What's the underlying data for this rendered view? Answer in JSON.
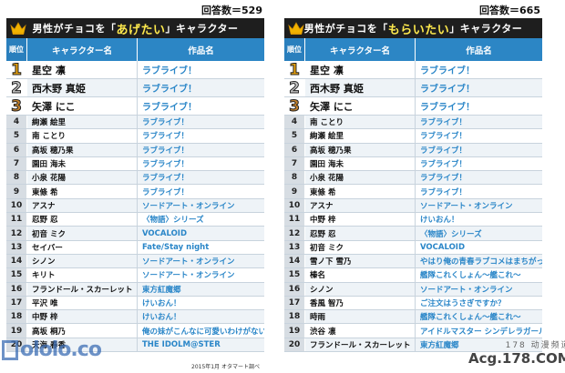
{
  "left": {
    "count": "回答数＝529",
    "title_pre": "男性が",
    "title_mid": "チョコを「",
    "title_hl": "あげたい",
    "title_post": "」キャラクター",
    "header": {
      "rank": "順位",
      "name": "キャラクター名",
      "work": "作品名"
    },
    "rows": [
      {
        "rank": "1",
        "name": "星空 凛",
        "work": "ラブライブ！"
      },
      {
        "rank": "2",
        "name": "西木野 真姫",
        "work": "ラブライブ！"
      },
      {
        "rank": "3",
        "name": "矢澤 にこ",
        "work": "ラブライブ！"
      },
      {
        "rank": "4",
        "name": "絢瀬 絵里",
        "work": "ラブライブ！"
      },
      {
        "rank": "5",
        "name": "南 ことり",
        "work": "ラブライブ！"
      },
      {
        "rank": "6",
        "name": "高坂 穂乃果",
        "work": "ラブライブ！"
      },
      {
        "rank": "7",
        "name": "園田 海未",
        "work": "ラブライブ！"
      },
      {
        "rank": "8",
        "name": "小泉 花陽",
        "work": "ラブライブ！"
      },
      {
        "rank": "9",
        "name": "東條 希",
        "work": "ラブライブ！"
      },
      {
        "rank": "10",
        "name": "アスナ",
        "work": "ソードアート・オンライン"
      },
      {
        "rank": "11",
        "name": "忍野 忍",
        "work": "〈物語〉シリーズ"
      },
      {
        "rank": "12",
        "name": "初音 ミク",
        "work": "VOCALOID"
      },
      {
        "rank": "13",
        "name": "セイバー",
        "work": "Fate/Stay night"
      },
      {
        "rank": "14",
        "name": "シノン",
        "work": "ソードアート・オンライン"
      },
      {
        "rank": "15",
        "name": "キリト",
        "work": "ソードアート・オンライン"
      },
      {
        "rank": "16",
        "name": "フランドール・スカーレット",
        "work": "東方紅魔郷"
      },
      {
        "rank": "17",
        "name": "平沢 唯",
        "work": "けいおん！"
      },
      {
        "rank": "18",
        "name": "中野 梓",
        "work": "けいおん！"
      },
      {
        "rank": "19",
        "name": "高坂 桐乃",
        "work": "俺の妹がこんなに可愛いわけがない"
      },
      {
        "rank": "20",
        "name": "天海 春香",
        "work": "THE IDOLM@STER"
      }
    ]
  },
  "right": {
    "count": "回答数＝665",
    "title_pre": "男性が",
    "title_mid": "チョコを「",
    "title_hl": "もらいたい",
    "title_post": "」キャラクター",
    "header": {
      "rank": "順位",
      "name": "キャラクター名",
      "work": "作品名"
    },
    "rows": [
      {
        "rank": "1",
        "name": "星空 凛",
        "work": "ラブライブ！"
      },
      {
        "rank": "2",
        "name": "西木野 真姫",
        "work": "ラブライブ！"
      },
      {
        "rank": "3",
        "name": "矢澤 にこ",
        "work": "ラブライブ！"
      },
      {
        "rank": "4",
        "name": "南 ことり",
        "work": "ラブライブ！"
      },
      {
        "rank": "5",
        "name": "絢瀬 絵里",
        "work": "ラブライブ！"
      },
      {
        "rank": "6",
        "name": "高坂 穂乃果",
        "work": "ラブライブ！"
      },
      {
        "rank": "7",
        "name": "園田 海未",
        "work": "ラブライブ！"
      },
      {
        "rank": "8",
        "name": "小泉 花陽",
        "work": "ラブライブ！"
      },
      {
        "rank": "9",
        "name": "東條 希",
        "work": "ラブライブ！"
      },
      {
        "rank": "10",
        "name": "アスナ",
        "work": "ソードアート・オンライン"
      },
      {
        "rank": "11",
        "name": "中野 梓",
        "work": "けいおん！"
      },
      {
        "rank": "12",
        "name": "忍野 忍",
        "work": "〈物語〉シリーズ"
      },
      {
        "rank": "13",
        "name": "初音 ミク",
        "work": "VOCALOID"
      },
      {
        "rank": "14",
        "name": "雪ノ下 雪乃",
        "work": "やはり俺の青春ラブコメはまちがっている。"
      },
      {
        "rank": "15",
        "name": "榛名",
        "work": "艦隊これくしょん〜艦これ〜"
      },
      {
        "rank": "16",
        "name": "シノン",
        "work": "ソードアート・オンライン"
      },
      {
        "rank": "17",
        "name": "香風 智乃",
        "work": "ご注文はうさぎですか？"
      },
      {
        "rank": "18",
        "name": "時雨",
        "work": "艦隊これくしょん〜艦これ〜"
      },
      {
        "rank": "19",
        "name": "渋谷 凛",
        "work": "アイドルマスター シンデレラガールズ"
      },
      {
        "rank": "20",
        "name": "フランドール・スカーレット",
        "work": "東方紅魔郷"
      }
    ]
  },
  "footnote": "2015年1月 オタマート調べ",
  "watermark_left": "ololo.co",
  "watermark_right_top": "178 动漫频道",
  "watermark_right_bottom": "Acg.178.COM"
}
